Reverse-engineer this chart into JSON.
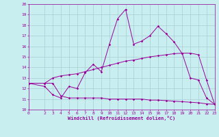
{
  "xlabel": "Windchill (Refroidissement éolien,°C)",
  "bg_color": "#c8eef0",
  "grid_color": "#aaccd4",
  "line_color": "#990099",
  "xlim": [
    0,
    23
  ],
  "ylim": [
    10,
    20
  ],
  "yticks": [
    10,
    11,
    12,
    13,
    14,
    15,
    16,
    17,
    18,
    19,
    20
  ],
  "xticks": [
    0,
    2,
    3,
    4,
    5,
    6,
    7,
    8,
    9,
    10,
    11,
    12,
    13,
    14,
    15,
    16,
    17,
    18,
    19,
    20,
    21,
    22,
    23
  ],
  "line1_x": [
    0,
    2,
    3,
    4,
    5,
    6,
    7,
    8,
    9,
    10,
    11,
    12,
    13,
    14,
    15,
    16,
    17,
    18,
    19,
    20,
    21,
    22,
    23
  ],
  "line1_y": [
    12.5,
    12.2,
    11.4,
    11.1,
    12.2,
    12.0,
    13.5,
    14.3,
    13.6,
    16.2,
    18.6,
    19.5,
    16.2,
    16.5,
    17.0,
    17.9,
    17.2,
    16.4,
    15.3,
    13.0,
    12.8,
    11.1,
    10.5
  ],
  "line2_x": [
    0,
    2,
    3,
    4,
    5,
    6,
    7,
    8,
    9,
    10,
    11,
    12,
    13,
    14,
    15,
    16,
    17,
    18,
    19,
    20,
    21,
    22,
    23
  ],
  "line2_y": [
    12.5,
    12.5,
    13.0,
    13.2,
    13.3,
    13.4,
    13.6,
    13.8,
    14.0,
    14.2,
    14.4,
    14.6,
    14.7,
    14.85,
    15.0,
    15.1,
    15.2,
    15.3,
    15.35,
    15.35,
    15.2,
    12.8,
    10.5
  ],
  "line3_x": [
    0,
    2,
    3,
    4,
    5,
    6,
    7,
    8,
    9,
    10,
    11,
    12,
    13,
    14,
    15,
    16,
    17,
    18,
    19,
    20,
    21,
    22,
    23
  ],
  "line3_y": [
    12.5,
    12.5,
    12.5,
    11.3,
    11.1,
    11.1,
    11.1,
    11.1,
    11.1,
    11.0,
    11.0,
    11.0,
    11.0,
    11.0,
    10.9,
    10.9,
    10.85,
    10.8,
    10.75,
    10.7,
    10.65,
    10.55,
    10.5
  ]
}
